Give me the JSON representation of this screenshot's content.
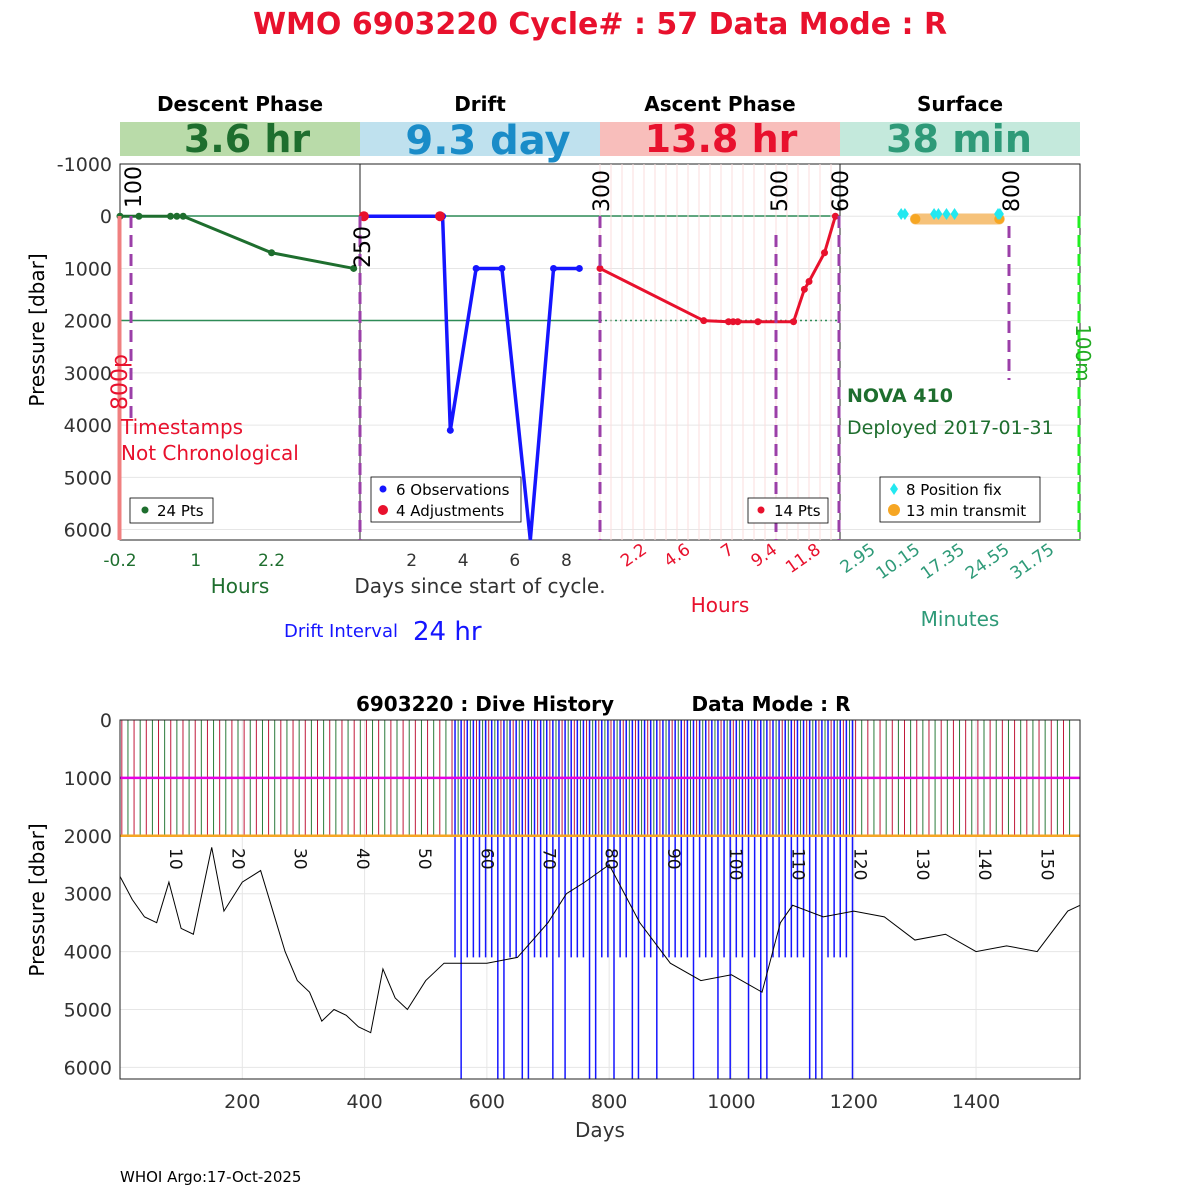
{
  "title": "WMO 6903220   Cycle# : 57   Data Mode : R",
  "colors": {
    "title": "#e8112d",
    "descent": "#1e6e2e",
    "drift": "#1515ff",
    "ascent": "#e8112d",
    "surface": "#2e9a78",
    "purple": "#9b3fa8",
    "cyan": "#22e8f0",
    "orange": "#f6a623",
    "magenta": "#e600e6"
  },
  "top": {
    "ylabel": "Pressure [dbar]",
    "yticks": [
      "-1000",
      "0",
      "1000",
      "2000",
      "3000",
      "4000",
      "5000",
      "6000"
    ],
    "ytick_values": [
      -1000,
      0,
      1000,
      2000,
      3000,
      4000,
      5000,
      6000
    ],
    "ylim": [
      -1000,
      6200
    ],
    "panels": {
      "descent": {
        "header": "Descent Phase",
        "duration": "3.6 hr",
        "xticks": [
          "-0.2",
          "1",
          "2.2"
        ],
        "xlabel": "Hours",
        "depth_markers": [
          "100",
          "800p"
        ],
        "legend": "24 Pts",
        "warning_line1": "Timestamps",
        "warning_line2": "Not Chronological",
        "chart_data": {
          "type": "line",
          "x_hours": [
            -0.2,
            0.1,
            0.6,
            0.7,
            0.8,
            2.2,
            3.5
          ],
          "pressure": [
            0,
            0,
            0,
            0,
            0,
            700,
            1000
          ],
          "xlim": [
            -0.2,
            3.6
          ]
        }
      },
      "drift": {
        "header": "Drift",
        "duration": "9.3 day",
        "xticks": [
          "2",
          "4",
          "6",
          "8"
        ],
        "xlabel": "Days since start of cycle.",
        "depth_marker": "250",
        "legend_obs": "6 Observations",
        "legend_adj": "4 Adjustments",
        "interval_label": "Drift Interval",
        "interval_value": "24 hr",
        "chart_data": {
          "type": "line",
          "x_days": [
            0.1,
            3.2,
            3.5,
            4.5,
            5.5,
            6.6,
            7.5,
            8.5
          ],
          "pressure": [
            0,
            0,
            4100,
            1000,
            1000,
            6300,
            1000,
            1000
          ],
          "adjustments_x": [
            0.15,
            3.1
          ],
          "adjustments_p": [
            0,
            0
          ],
          "xlim": [
            0,
            9.3
          ]
        }
      },
      "ascent": {
        "header": "Ascent Phase",
        "duration": "13.8 hr",
        "xticks": [
          "2.2",
          "4.6",
          "7",
          "9.4",
          "11.8"
        ],
        "xlabel": "Hours",
        "depth_markers": [
          "300",
          "500",
          "600"
        ],
        "legend": "14 Pts",
        "chart_data": {
          "type": "line",
          "x_hours": [
            0,
            6.7,
            8.3,
            8.6,
            8.9,
            10.2,
            12.5,
            13.2,
            13.5,
            14.5,
            15.2
          ],
          "pressure": [
            1000,
            2000,
            2020,
            2020,
            2020,
            2020,
            2020,
            1400,
            1250,
            700,
            0
          ],
          "xlim": [
            0,
            15.5
          ]
        }
      },
      "surface": {
        "header": "Surface",
        "duration": "38 min",
        "xticks": [
          "2.95",
          "10.15",
          "17.35",
          "24.55",
          "31.75"
        ],
        "xlabel": "Minutes",
        "depth_markers": [
          "800",
          "100m"
        ],
        "float_type": "NOVA 410",
        "deployed": "Deployed 2017-01-31",
        "legend_fix": "8 Position fix",
        "legend_transmit": "13 min transmit",
        "chart_data": {
          "type": "scatter",
          "fix_minutes": [
            9.2,
            9.8,
            14.5,
            15.2,
            16.5,
            17.8,
            25.1,
            24.8
          ],
          "fix_pressure": [
            -50,
            -50,
            -50,
            -50,
            -50,
            -50,
            -50,
            -50
          ],
          "transmit_range_minutes": [
            11.5,
            25
          ],
          "xlim": [
            -0.65,
            38
          ]
        }
      }
    }
  },
  "bottom": {
    "title_left": "6903220 : Dive History",
    "title_right": "Data Mode : R",
    "ylabel": "Pressure [dbar]",
    "xlabel": "Days",
    "yticks": [
      "0",
      "1000",
      "2000",
      "3000",
      "4000",
      "5000",
      "6000"
    ],
    "ytick_values": [
      0,
      1000,
      2000,
      3000,
      4000,
      5000,
      6000
    ],
    "xticks": [
      "200",
      "400",
      "600",
      "800",
      "1000",
      "1200",
      "1400"
    ],
    "xtick_values": [
      200,
      400,
      600,
      800,
      1000,
      1200,
      1400
    ],
    "cycle_labels": [
      "10",
      "20",
      "30",
      "40",
      "50",
      "60",
      "70",
      "80",
      "90",
      "100",
      "110",
      "120",
      "130",
      "140",
      "150"
    ],
    "chart_data": {
      "type": "line",
      "xlim": [
        0,
        1570
      ],
      "ylim": [
        0,
        6200
      ],
      "drift_pressure": 1000,
      "profile_pressure": 2000,
      "bathymetry_days": [
        0,
        20,
        40,
        60,
        80,
        100,
        120,
        150,
        170,
        200,
        230,
        250,
        270,
        290,
        310,
        330,
        350,
        370,
        390,
        410,
        430,
        450,
        470,
        500,
        530,
        560,
        600,
        650,
        700,
        730,
        760,
        800,
        850,
        900,
        950,
        1000,
        1050,
        1080,
        1100,
        1150,
        1200,
        1250,
        1300,
        1350,
        1400,
        1450,
        1500,
        1550,
        1570
      ],
      "bathymetry_pressure": [
        2700,
        3100,
        3400,
        3500,
        2800,
        3600,
        3700,
        2200,
        3300,
        2800,
        2600,
        3300,
        4000,
        4500,
        4700,
        5200,
        5000,
        5100,
        5300,
        5400,
        4300,
        4800,
        5000,
        4500,
        4200,
        4200,
        4200,
        4100,
        3500,
        3000,
        2800,
        2500,
        3500,
        4200,
        4500,
        4400,
        4700,
        3500,
        3200,
        3400,
        3300,
        3400,
        3800,
        3700,
        4000,
        3900,
        4000,
        3300,
        3200
      ]
    }
  },
  "footer": "WHOI Argo:17-Oct-2025"
}
